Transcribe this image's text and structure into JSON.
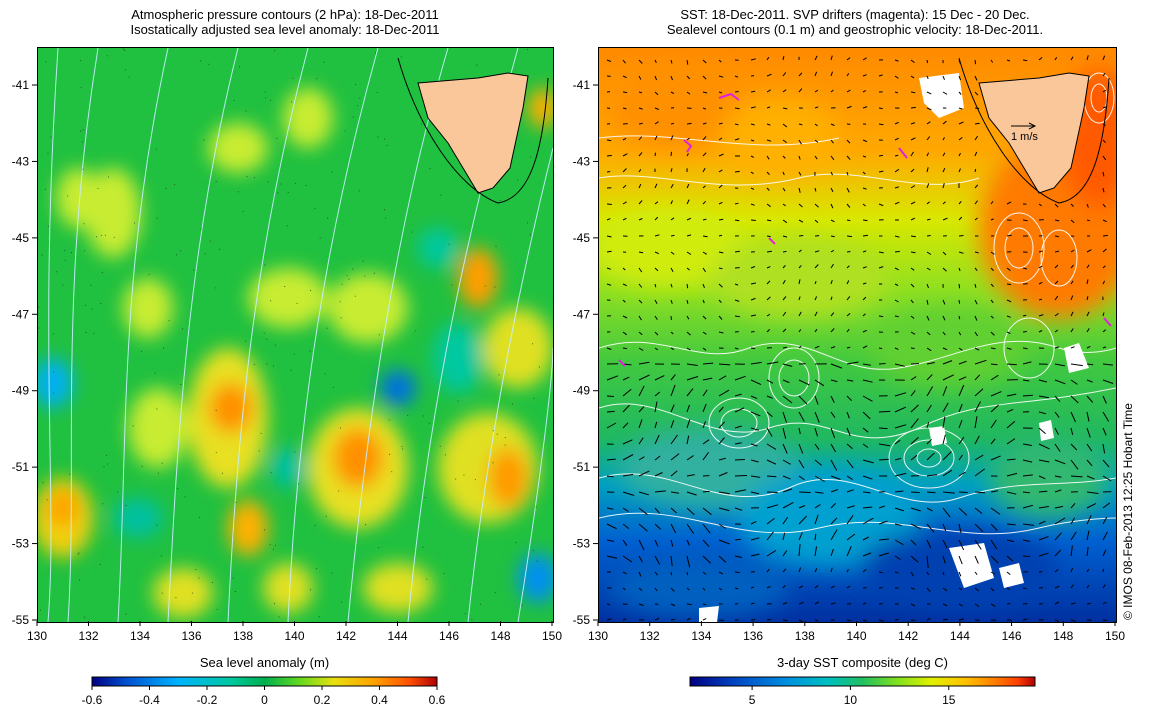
{
  "left_panel": {
    "title_line1": "Atmospheric pressure contours (2 hPa): 18-Dec-2011",
    "title_line2": "Isostatically adjusted sea level anomaly: 18-Dec-2011",
    "y_ticks": [
      "-41",
      "-43",
      "-45",
      "-47",
      "-49",
      "-51",
      "-53",
      "-55"
    ],
    "x_ticks": [
      "130",
      "132",
      "134",
      "136",
      "138",
      "140",
      "142",
      "144",
      "146",
      "148",
      "150"
    ],
    "colorbar": {
      "title": "Sea level anomaly (m)",
      "ticks": [
        "-0.6",
        "-0.4",
        "-0.2",
        "0",
        "0.2",
        "0.4",
        "0.6"
      ]
    }
  },
  "right_panel": {
    "title_line1": "SST: 18-Dec-2011. SVP drifters (magenta): 15 Dec - 20 Dec.",
    "title_line2": "Sealevel contours (0.1 m) and geostrophic velocity: 18-Dec-2011.",
    "y_ticks": [
      "-41",
      "-43",
      "-45",
      "-47",
      "-49",
      "-51",
      "-53",
      "-55"
    ],
    "x_ticks": [
      "130",
      "132",
      "134",
      "136",
      "138",
      "140",
      "142",
      "144",
      "146",
      "148",
      "150"
    ],
    "velocity_scale_label": "1 m/s",
    "colorbar": {
      "title": "3-day SST composite (deg C)",
      "ticks": [
        "5",
        "10",
        "15"
      ]
    }
  },
  "copyright": "© IMOS 08-Feb-2013 12:25 Hobart Time",
  "colors": {
    "land": "#f9c79a",
    "sla_ramp": [
      "#000080",
      "#0050d0",
      "#00b4ff",
      "#00c8a0",
      "#00b050",
      "#40d020",
      "#a0e020",
      "#f0e010",
      "#ffa000",
      "#ff5000",
      "#c00000"
    ],
    "sst_ramp": [
      "#000080",
      "#0040c0",
      "#0090e0",
      "#00c0c0",
      "#20c060",
      "#80e020",
      "#e0f000",
      "#ffc000",
      "#ff8000",
      "#ff4000",
      "#b00000"
    ]
  }
}
